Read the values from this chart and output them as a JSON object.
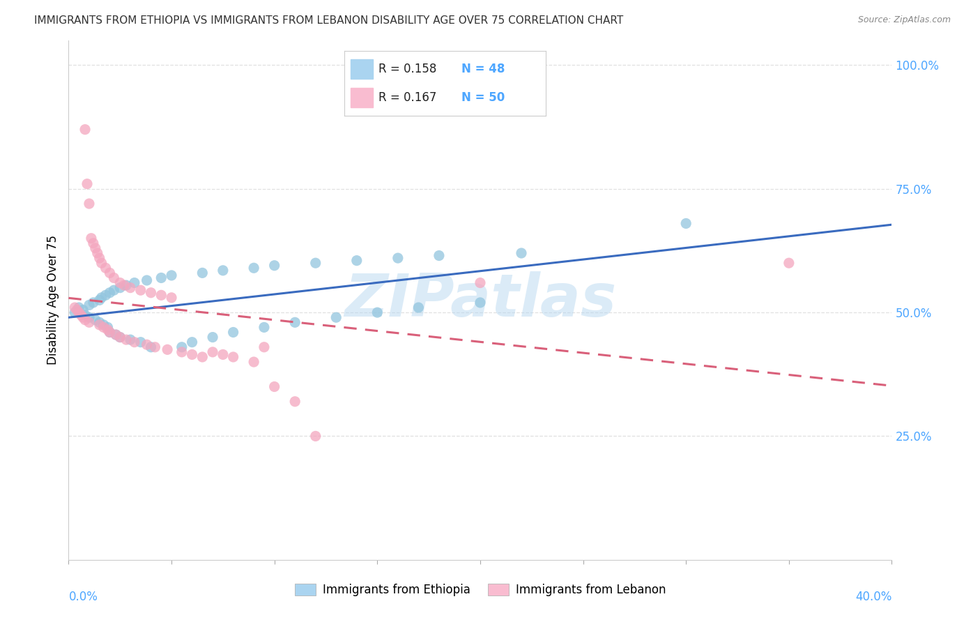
{
  "title": "IMMIGRANTS FROM ETHIOPIA VS IMMIGRANTS FROM LEBANON DISABILITY AGE OVER 75 CORRELATION CHART",
  "source": "Source: ZipAtlas.com",
  "ylabel": "Disability Age Over 75",
  "xlim": [
    0.0,
    0.4
  ],
  "ylim": [
    0.0,
    1.05
  ],
  "yticks": [
    0.25,
    0.5,
    0.75,
    1.0
  ],
  "ytick_labels": [
    "25.0%",
    "50.0%",
    "75.0%",
    "100.0%"
  ],
  "xticks": [
    0.0,
    0.05,
    0.1,
    0.15,
    0.2,
    0.25,
    0.3,
    0.35,
    0.4
  ],
  "legend_r1": "R = 0.158",
  "legend_n1": "N = 48",
  "legend_r2": "R = 0.167",
  "legend_n2": "N = 50",
  "legend_label1": "Immigrants from Ethiopia",
  "legend_label2": "Immigrants from Lebanon",
  "blue_scatter": "#92c5de",
  "pink_scatter": "#f4a6be",
  "blue_line": "#3a6bbf",
  "pink_line": "#d9607a",
  "legend_blue_patch": "#aad4f0",
  "legend_pink_patch": "#f9bcd0",
  "axis_tick_color": "#4da6ff",
  "title_fontsize": 11,
  "source_fontsize": 9,
  "watermark_text": "ZIPatlas",
  "watermark_color": "#b8d8f0",
  "grid_color": "#e0e0e0",
  "grid_style": "--",
  "eth_x": [
    0.003,
    0.005,
    0.007,
    0.008,
    0.01,
    0.01,
    0.012,
    0.013,
    0.015,
    0.015,
    0.016,
    0.017,
    0.018,
    0.019,
    0.02,
    0.02,
    0.022,
    0.023,
    0.025,
    0.025,
    0.028,
    0.03,
    0.032,
    0.035,
    0.038,
    0.04,
    0.045,
    0.05,
    0.055,
    0.06,
    0.065,
    0.07,
    0.075,
    0.08,
    0.09,
    0.095,
    0.1,
    0.11,
    0.12,
    0.13,
    0.14,
    0.15,
    0.16,
    0.17,
    0.18,
    0.2,
    0.22,
    0.3
  ],
  "eth_y": [
    0.5,
    0.51,
    0.505,
    0.495,
    0.515,
    0.49,
    0.52,
    0.485,
    0.525,
    0.48,
    0.53,
    0.475,
    0.535,
    0.47,
    0.54,
    0.46,
    0.545,
    0.455,
    0.55,
    0.45,
    0.555,
    0.445,
    0.56,
    0.44,
    0.565,
    0.43,
    0.57,
    0.575,
    0.43,
    0.44,
    0.58,
    0.45,
    0.585,
    0.46,
    0.59,
    0.47,
    0.595,
    0.48,
    0.6,
    0.49,
    0.605,
    0.5,
    0.61,
    0.51,
    0.615,
    0.52,
    0.62,
    0.68
  ],
  "leb_x": [
    0.003,
    0.004,
    0.005,
    0.006,
    0.007,
    0.008,
    0.008,
    0.009,
    0.01,
    0.01,
    0.011,
    0.012,
    0.013,
    0.014,
    0.015,
    0.015,
    0.016,
    0.017,
    0.018,
    0.019,
    0.02,
    0.02,
    0.022,
    0.023,
    0.025,
    0.025,
    0.027,
    0.028,
    0.03,
    0.032,
    0.035,
    0.038,
    0.04,
    0.042,
    0.045,
    0.048,
    0.05,
    0.055,
    0.06,
    0.065,
    0.07,
    0.075,
    0.08,
    0.09,
    0.095,
    0.1,
    0.11,
    0.12,
    0.2,
    0.35
  ],
  "leb_y": [
    0.51,
    0.505,
    0.5,
    0.495,
    0.49,
    0.87,
    0.485,
    0.76,
    0.72,
    0.48,
    0.65,
    0.64,
    0.63,
    0.62,
    0.61,
    0.475,
    0.6,
    0.47,
    0.59,
    0.465,
    0.58,
    0.46,
    0.57,
    0.455,
    0.56,
    0.45,
    0.555,
    0.445,
    0.55,
    0.44,
    0.545,
    0.435,
    0.54,
    0.43,
    0.535,
    0.425,
    0.53,
    0.42,
    0.415,
    0.41,
    0.42,
    0.415,
    0.41,
    0.4,
    0.43,
    0.35,
    0.32,
    0.25,
    0.56,
    0.6
  ]
}
